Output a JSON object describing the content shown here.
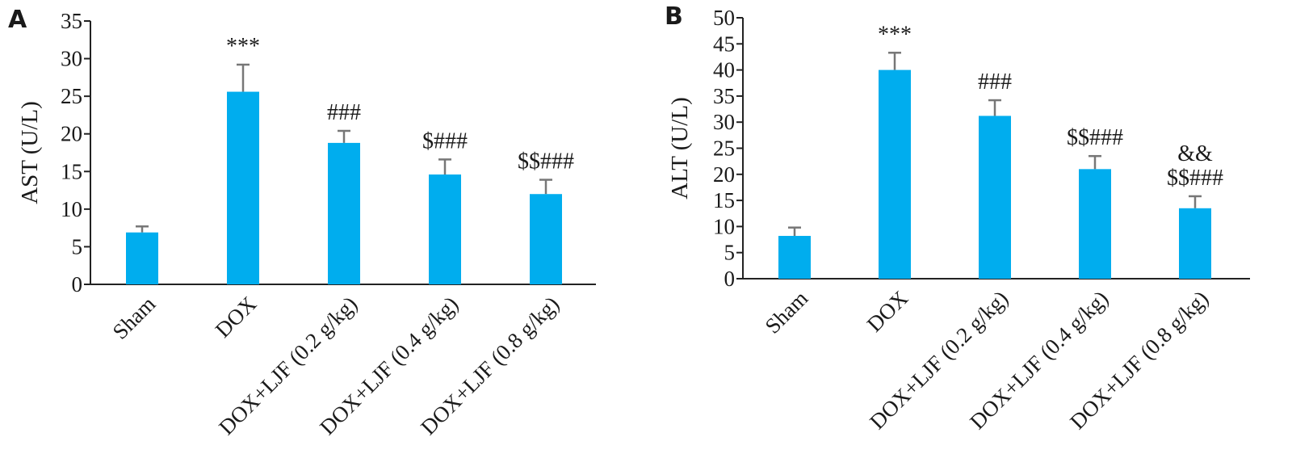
{
  "colors": {
    "bar": "#00adee",
    "error_bar": "#777777",
    "axis": "#222222",
    "text": "#1a1a1a"
  },
  "chart_data": [
    {
      "panel_label": "A",
      "type": "bar",
      "ylabel": "AST (U/L)",
      "xlabel": "",
      "ylim": [
        0,
        35
      ],
      "yticks": [
        0,
        5,
        10,
        15,
        20,
        25,
        30,
        35
      ],
      "categories": [
        "Sham",
        "DOX",
        "DOX+LJF (0.2 g/kg)",
        "DOX+LJF (0.4 g/kg)",
        "DOX+LJF (0.8 g/kg)"
      ],
      "values": [
        6.9,
        25.6,
        18.8,
        14.6,
        12.0
      ],
      "errors": [
        0.8,
        3.6,
        1.6,
        2.0,
        1.9
      ],
      "annotations": [
        [],
        [
          "***"
        ],
        [
          "###"
        ],
        [
          "$###"
        ],
        [
          "$$###"
        ]
      ]
    },
    {
      "panel_label": "B",
      "type": "bar",
      "ylabel": "ALT (U/L)",
      "xlabel": "",
      "ylim": [
        0,
        50
      ],
      "yticks": [
        0,
        5,
        10,
        15,
        20,
        25,
        30,
        35,
        40,
        45,
        50
      ],
      "categories": [
        "Sham",
        "DOX",
        "DOX+LJF (0.2 g/kg)",
        "DOX+LJF (0.4 g/kg)",
        "DOX+LJF (0.8 g/kg)"
      ],
      "values": [
        8.2,
        40.0,
        31.2,
        21.0,
        13.5
      ],
      "errors": [
        1.6,
        3.3,
        3.0,
        2.5,
        2.3
      ],
      "annotations": [
        [],
        [
          "***"
        ],
        [
          "###"
        ],
        [
          "$$###"
        ],
        [
          "&&",
          "$$###"
        ]
      ]
    }
  ]
}
